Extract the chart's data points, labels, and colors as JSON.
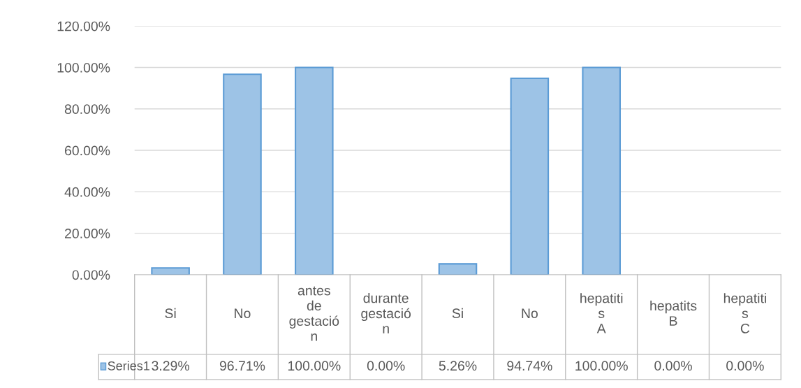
{
  "chart_data": {
    "type": "bar",
    "categories": [
      "Si",
      "No",
      "antes de gestación",
      "durante gestación",
      "Si",
      "No",
      "hepatitis A",
      "hepatits B",
      "hepatitis C"
    ],
    "series": [
      {
        "name": "Series1",
        "color": "#9dc3e6",
        "values": [
          3.29,
          96.71,
          100.0,
          0.0,
          5.26,
          94.74,
          100.0,
          0.0,
          0.0
        ],
        "value_labels": [
          "3.29%",
          "96.71%",
          "100.00%",
          "0.00%",
          "5.26%",
          "94.74%",
          "100.00%",
          "0.00%",
          "0.00%"
        ]
      }
    ],
    "ylim": [
      0,
      120
    ],
    "yticks": [
      {
        "value": 0,
        "label": "0.00%"
      },
      {
        "value": 20,
        "label": "20.00%"
      },
      {
        "value": 40,
        "label": "40.00%"
      },
      {
        "value": 60,
        "label": "60.00%"
      },
      {
        "value": 80,
        "label": "80.00%"
      },
      {
        "value": 100,
        "label": "100.00%"
      },
      {
        "value": 120,
        "label": "120.00%"
      }
    ],
    "grid": "y",
    "legend": "bottom left"
  }
}
